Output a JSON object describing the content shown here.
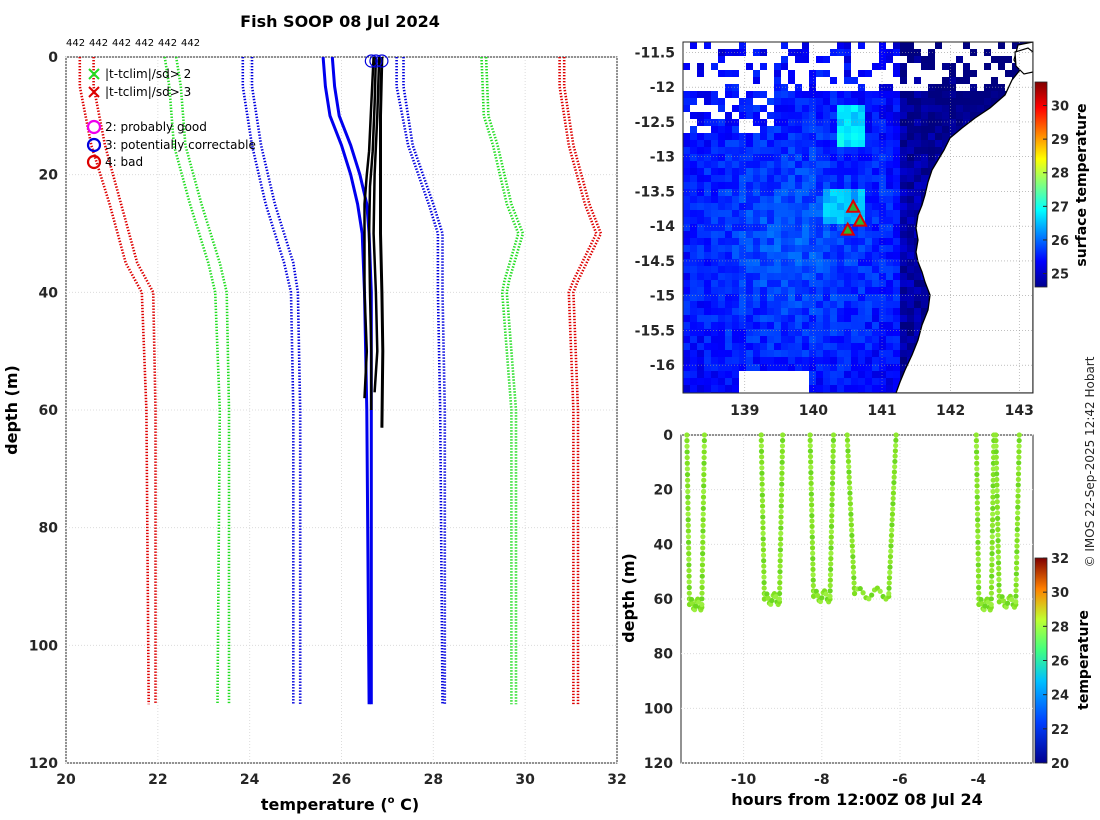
{
  "title": "Fish SOOP 08 Jul 2024",
  "profile_counts": [
    "442",
    "442",
    "442",
    "442",
    "442",
    "442"
  ],
  "credit": "© IMOS 22-Sep-2025 12:42 Hobart",
  "chart_data": [
    {
      "id": "profile",
      "type": "line",
      "xlabel": "temperature (",
      "xlabel_sup": "o",
      "xlabel_tail": " C)",
      "ylabel": "depth (m)",
      "xlim": [
        20,
        32
      ],
      "ylim": [
        0,
        120
      ],
      "xticks": [
        20,
        22,
        24,
        26,
        28,
        30,
        32
      ],
      "yticks": [
        0,
        20,
        40,
        60,
        80,
        100,
        120
      ],
      "legend": [
        {
          "marker": "x",
          "label": "|t-tclim|/sd> 2",
          "color": "#22dd22"
        },
        {
          "marker": "x",
          "label": "|t-tclim|/sd> 3",
          "color": "#dd0000"
        },
        {
          "marker": "o",
          "label": "2: probably good",
          "color": "#ee00ee"
        },
        {
          "marker": "o",
          "label": "3: potentially correctable",
          "color": "#0000dd"
        },
        {
          "marker": "o",
          "label": "4: bad",
          "color": "#dd0000"
        }
      ],
      "series": [
        {
          "name": "clim +3sd",
          "color": "#dd0000",
          "style": "dotted",
          "points": [
            [
              30.75,
              0
            ],
            [
              30.75,
              5
            ],
            [
              30.95,
              15
            ],
            [
              31.3,
              25
            ],
            [
              31.55,
              30
            ],
            [
              31.05,
              38
            ],
            [
              30.95,
              40
            ],
            [
              31.05,
              60
            ],
            [
              31.05,
              110
            ]
          ]
        },
        {
          "name": "clim +3sd b",
          "color": "#dd0000",
          "style": "dotted",
          "points": [
            [
              30.85,
              0
            ],
            [
              30.85,
              5
            ],
            [
              31.05,
              15
            ],
            [
              31.4,
              25
            ],
            [
              31.65,
              30
            ],
            [
              31.15,
              38
            ],
            [
              31.05,
              40
            ],
            [
              31.15,
              60
            ],
            [
              31.15,
              110
            ]
          ]
        },
        {
          "name": "clim -3sd",
          "color": "#dd0000",
          "style": "dotted",
          "points": [
            [
              20.3,
              0
            ],
            [
              20.3,
              5
            ],
            [
              20.55,
              15
            ],
            [
              20.95,
              25
            ],
            [
              21.3,
              35
            ],
            [
              21.65,
              40
            ],
            [
              21.75,
              60
            ],
            [
              21.8,
              110
            ]
          ]
        },
        {
          "name": "clim -3sd b",
          "color": "#dd0000",
          "style": "dotted",
          "points": [
            [
              20.6,
              0
            ],
            [
              20.6,
              5
            ],
            [
              20.85,
              15
            ],
            [
              21.2,
              25
            ],
            [
              21.55,
              35
            ],
            [
              21.9,
              40
            ],
            [
              21.95,
              60
            ],
            [
              21.95,
              110
            ]
          ]
        },
        {
          "name": "clim +2sd",
          "color": "#22dd22",
          "style": "dotted",
          "points": [
            [
              29.05,
              0
            ],
            [
              29.1,
              10
            ],
            [
              29.3,
              15
            ],
            [
              29.6,
              25
            ],
            [
              29.85,
              30
            ],
            [
              29.55,
              38
            ],
            [
              29.5,
              40
            ],
            [
              29.7,
              60
            ],
            [
              29.7,
              110
            ]
          ]
        },
        {
          "name": "clim +2sd b",
          "color": "#22dd22",
          "style": "dotted",
          "points": [
            [
              29.15,
              0
            ],
            [
              29.2,
              10
            ],
            [
              29.4,
              15
            ],
            [
              29.7,
              25
            ],
            [
              29.95,
              30
            ],
            [
              29.65,
              38
            ],
            [
              29.6,
              40
            ],
            [
              29.8,
              60
            ],
            [
              29.8,
              110
            ]
          ]
        },
        {
          "name": "clim -2sd",
          "color": "#22dd22",
          "style": "dotted",
          "points": [
            [
              22.15,
              0
            ],
            [
              22.25,
              5
            ],
            [
              22.35,
              15
            ],
            [
              22.7,
              25
            ],
            [
              23.1,
              35
            ],
            [
              23.25,
              40
            ],
            [
              23.35,
              60
            ],
            [
              23.3,
              110
            ]
          ]
        },
        {
          "name": "clim -2sd b",
          "color": "#22dd22",
          "style": "dotted",
          "points": [
            [
              22.4,
              0
            ],
            [
              22.5,
              5
            ],
            [
              22.6,
              15
            ],
            [
              22.95,
              25
            ],
            [
              23.35,
              35
            ],
            [
              23.5,
              40
            ],
            [
              23.55,
              60
            ],
            [
              23.55,
              110
            ]
          ]
        },
        {
          "name": "clim +1sd",
          "color": "#0000dd",
          "style": "dotted",
          "points": [
            [
              27.2,
              0
            ],
            [
              27.2,
              5
            ],
            [
              27.45,
              15
            ],
            [
              27.9,
              25
            ],
            [
              28.1,
              30
            ],
            [
              28.1,
              40
            ],
            [
              28.15,
              60
            ],
            [
              28.2,
              110
            ]
          ]
        },
        {
          "name": "clim +1sd b",
          "color": "#0000dd",
          "style": "dotted",
          "points": [
            [
              27.35,
              0
            ],
            [
              27.35,
              5
            ],
            [
              27.55,
              15
            ],
            [
              28.0,
              25
            ],
            [
              28.2,
              30
            ],
            [
              28.2,
              40
            ],
            [
              28.25,
              60
            ],
            [
              28.25,
              110
            ]
          ]
        },
        {
          "name": "clim -1sd",
          "color": "#0000dd",
          "style": "dotted",
          "points": [
            [
              23.85,
              0
            ],
            [
              23.85,
              5
            ],
            [
              24.05,
              15
            ],
            [
              24.35,
              25
            ],
            [
              24.75,
              35
            ],
            [
              24.9,
              40
            ],
            [
              24.95,
              60
            ],
            [
              24.95,
              110
            ]
          ]
        },
        {
          "name": "clim -1sd b",
          "color": "#0000dd",
          "style": "dotted",
          "points": [
            [
              24.05,
              0
            ],
            [
              24.05,
              5
            ],
            [
              24.25,
              15
            ],
            [
              24.55,
              25
            ],
            [
              24.95,
              35
            ],
            [
              25.05,
              40
            ],
            [
              25.1,
              60
            ],
            [
              25.1,
              110
            ]
          ]
        },
        {
          "name": "clim mean",
          "color": "#0000ee",
          "style": "solid",
          "width": 3,
          "points": [
            [
              25.6,
              0
            ],
            [
              25.65,
              5
            ],
            [
              25.75,
              10
            ],
            [
              26.0,
              15
            ],
            [
              26.2,
              20
            ],
            [
              26.35,
              25
            ],
            [
              26.45,
              30
            ],
            [
              26.5,
              40
            ],
            [
              26.55,
              60
            ],
            [
              26.6,
              110
            ]
          ]
        },
        {
          "name": "clim mean b",
          "color": "#0000ee",
          "style": "solid",
          "width": 3,
          "points": [
            [
              25.8,
              0
            ],
            [
              25.85,
              5
            ],
            [
              25.95,
              10
            ],
            [
              26.2,
              15
            ],
            [
              26.4,
              20
            ],
            [
              26.55,
              25
            ],
            [
              26.6,
              30
            ],
            [
              26.65,
              40
            ],
            [
              26.65,
              60
            ],
            [
              26.65,
              110
            ]
          ]
        },
        {
          "name": "profile 1",
          "color": "#000000",
          "style": "solid",
          "width": 2.5,
          "points": [
            [
              26.7,
              0
            ],
            [
              26.65,
              8
            ],
            [
              26.6,
              16
            ],
            [
              26.55,
              20
            ],
            [
              26.5,
              25
            ],
            [
              26.5,
              40
            ],
            [
              26.55,
              50
            ],
            [
              26.5,
              58
            ]
          ]
        },
        {
          "name": "profile 2",
          "color": "#000000",
          "style": "solid",
          "width": 2.5,
          "points": [
            [
              26.75,
              0
            ],
            [
              26.72,
              8
            ],
            [
              26.68,
              16
            ],
            [
              26.62,
              22
            ],
            [
              26.6,
              30
            ],
            [
              26.62,
              40
            ],
            [
              26.65,
              50
            ],
            [
              26.65,
              60
            ]
          ]
        },
        {
          "name": "profile 3",
          "color": "#000000",
          "style": "solid",
          "width": 2.5,
          "points": [
            [
              26.82,
              0
            ],
            [
              26.78,
              10
            ],
            [
              26.72,
              20
            ],
            [
              26.7,
              30
            ],
            [
              26.75,
              40
            ],
            [
              26.78,
              50
            ],
            [
              26.72,
              57
            ]
          ]
        },
        {
          "name": "profile 4",
          "color": "#000000",
          "style": "solid",
          "width": 3,
          "points": [
            [
              26.88,
              0
            ],
            [
              26.85,
              10
            ],
            [
              26.85,
              20
            ],
            [
              26.85,
              30
            ],
            [
              26.88,
              40
            ],
            [
              26.9,
              50
            ],
            [
              26.88,
              63
            ]
          ]
        }
      ],
      "qc_flags": [
        [
          26.65,
          0,
          "#0000dd"
        ],
        [
          26.75,
          0,
          "#0000dd"
        ],
        [
          26.88,
          0,
          "#0000dd"
        ]
      ]
    },
    {
      "id": "map",
      "type": "heatmap",
      "colorbar_label": "surface temperature",
      "xlim": [
        138.1,
        143.2
      ],
      "ylim": [
        -16.4,
        -11.35
      ],
      "xticks": [
        139,
        140,
        141,
        142,
        143
      ],
      "yticks": [
        -11.5,
        -12,
        -12.5,
        -13,
        -13.5,
        -14,
        -14.5,
        -15,
        -15.5,
        -16
      ],
      "cticks": [
        25,
        26,
        27,
        28,
        29,
        30
      ],
      "clim": [
        24.6,
        30.7
      ],
      "ship_positions": [
        [
          140.58,
          -13.72
        ],
        [
          140.68,
          -13.92
        ],
        [
          140.5,
          -14.05
        ]
      ]
    },
    {
      "id": "section",
      "type": "scatter",
      "xlabel": "hours from 12:00Z 08 Jul 24",
      "ylabel": "depth (m)",
      "colorbar_label": "temperature",
      "xlim": [
        -11.6,
        -2.6
      ],
      "ylim": [
        0,
        120
      ],
      "xticks": [
        -10,
        -8,
        -6,
        -4
      ],
      "yticks": [
        0,
        20,
        40,
        60,
        80,
        100,
        120
      ],
      "cticks": [
        20,
        22,
        24,
        26,
        28,
        30,
        32
      ],
      "clim": [
        20,
        32
      ],
      "casts": [
        {
          "t0": -11.45,
          "t1": -11.0,
          "bottom": 62
        },
        {
          "t0": -9.55,
          "t1": -9.0,
          "bottom": 60
        },
        {
          "t0": -8.3,
          "t1": -7.7,
          "bottom": 59
        },
        {
          "t0": -7.35,
          "t1": -6.1,
          "bottom": 58
        },
        {
          "t0": -4.05,
          "t1": -3.6,
          "bottom": 62
        },
        {
          "t0": -3.55,
          "t1": -2.95,
          "bottom": 61
        }
      ]
    }
  ]
}
